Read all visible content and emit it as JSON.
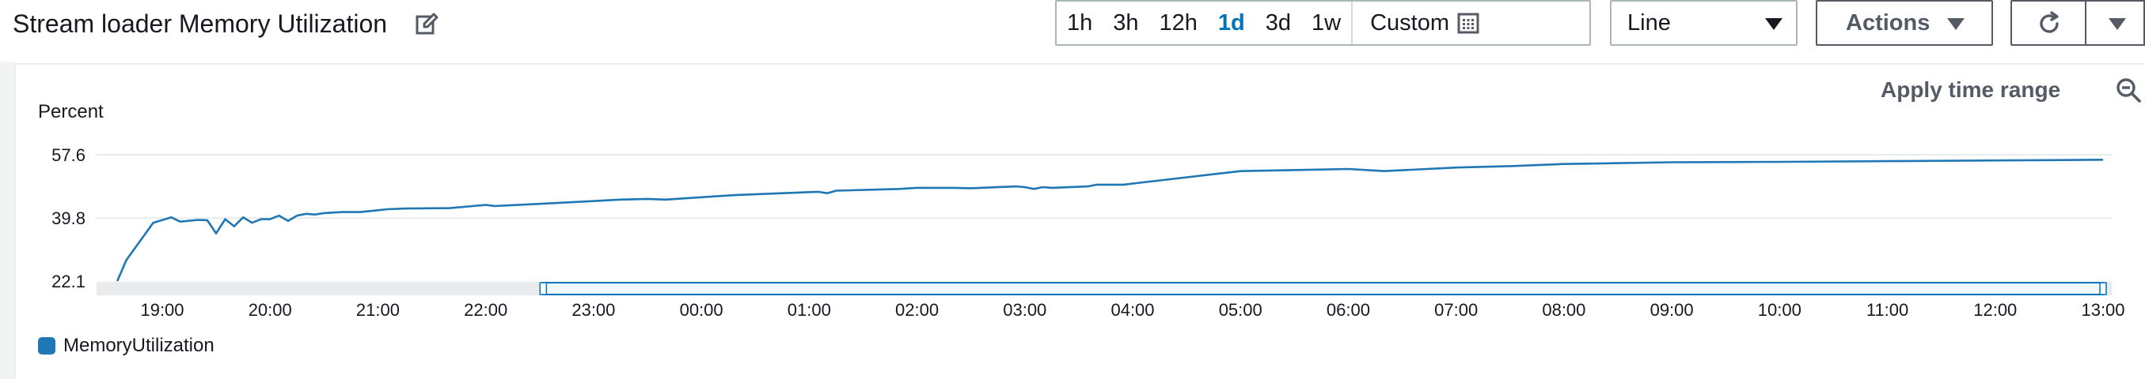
{
  "header": {
    "title": "Stream loader Memory Utilization",
    "edit_icon": "edit-icon",
    "time_ranges": [
      {
        "label": "1h",
        "active": false
      },
      {
        "label": "3h",
        "active": false
      },
      {
        "label": "12h",
        "active": false
      },
      {
        "label": "1d",
        "active": true
      },
      {
        "label": "3d",
        "active": false
      },
      {
        "label": "1w",
        "active": false
      }
    ],
    "custom_label": "Custom",
    "calendar_icon": "calendar-icon",
    "chart_type_value": "Line",
    "actions_label": "Actions",
    "refresh_icon": "refresh-icon"
  },
  "panel": {
    "apply_time_range": "Apply time range",
    "zoom_icon": "zoom-out-icon"
  },
  "colors": {
    "series": "#1f77b4",
    "active_range": "#0073bb"
  },
  "chart_data": {
    "type": "line",
    "title": "Stream loader Memory Utilization",
    "ylabel": "Percent",
    "xlabel": "",
    "yticks": [
      "22.1",
      "39.8",
      "57.6"
    ],
    "ylim": [
      22.1,
      57.6
    ],
    "xticks": [
      "19:00",
      "20:00",
      "21:00",
      "22:00",
      "23:00",
      "00:00",
      "01:00",
      "02:00",
      "03:00",
      "04:00",
      "05:00",
      "06:00",
      "07:00",
      "08:00",
      "09:00",
      "10:00",
      "11:00",
      "12:00",
      "13:00"
    ],
    "x_range": [
      "18:35",
      "13:00"
    ],
    "grid": true,
    "legend_position": "bottom-left",
    "series": [
      {
        "name": "MemoryUtilization",
        "x": [
          "18:35",
          "18:40",
          "18:55",
          "19:05",
          "19:10",
          "19:20",
          "19:25",
          "19:30",
          "19:35",
          "19:40",
          "19:45",
          "19:50",
          "19:55",
          "20:00",
          "20:05",
          "20:10",
          "20:15",
          "20:20",
          "20:25",
          "20:30",
          "20:40",
          "20:50",
          "21:00",
          "21:05",
          "21:15",
          "21:40",
          "22:00",
          "22:05",
          "22:30",
          "23:15",
          "23:30",
          "23:40",
          "00:10",
          "00:20",
          "01:05",
          "01:10",
          "01:15",
          "01:50",
          "02:00",
          "02:20",
          "02:30",
          "02:55",
          "03:00",
          "03:05",
          "03:10",
          "03:15",
          "03:35",
          "03:40",
          "03:55",
          "04:00",
          "05:00",
          "06:00",
          "06:20",
          "07:00",
          "07:30",
          "08:00",
          "09:00",
          "10:00",
          "11:00",
          "12:00",
          "12:30",
          "13:00"
        ],
        "y": [
          22.1,
          28.0,
          38.5,
          40.0,
          38.8,
          39.3,
          39.2,
          35.5,
          39.5,
          37.5,
          40.0,
          38.5,
          39.5,
          39.5,
          40.5,
          39.0,
          40.5,
          41.0,
          40.8,
          41.2,
          41.5,
          41.5,
          42.0,
          42.3,
          42.5,
          42.6,
          43.5,
          43.2,
          43.8,
          45.0,
          45.2,
          45.0,
          46.0,
          46.3,
          47.2,
          46.8,
          47.5,
          48.0,
          48.3,
          48.3,
          48.2,
          48.7,
          48.5,
          48.0,
          48.5,
          48.3,
          48.7,
          49.2,
          49.2,
          49.5,
          53.0,
          53.6,
          53.0,
          54.0,
          54.4,
          55.0,
          55.5,
          55.6,
          55.8,
          56.0,
          56.1,
          56.2
        ]
      }
    ],
    "time_range_brush": {
      "from": "22:32",
      "to": "13:00"
    }
  }
}
